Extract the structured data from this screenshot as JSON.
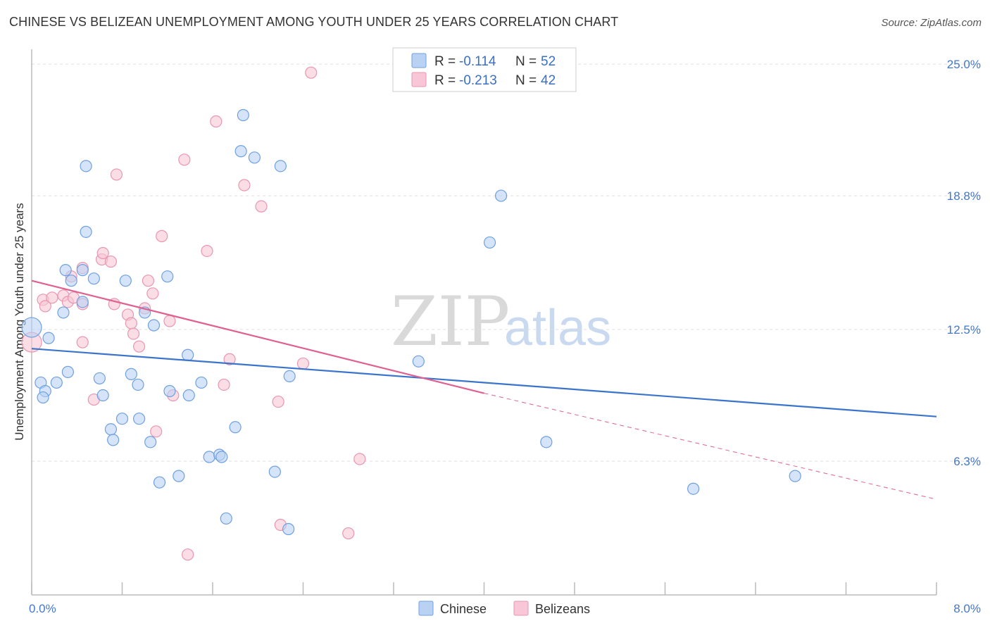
{
  "title": "CHINESE VS BELIZEAN UNEMPLOYMENT AMONG YOUTH UNDER 25 YEARS CORRELATION CHART",
  "source": "Source: ZipAtlas.com",
  "chart_data": {
    "type": "scatter",
    "ylabel": "Unemployment Among Youth under 25 years",
    "x_tick_labels": [
      "0.0%",
      "8.0%"
    ],
    "y_tick_labels": [
      "25.0%",
      "18.8%",
      "12.5%",
      "6.3%"
    ],
    "y_ticks": [
      25.0,
      18.8,
      12.5,
      6.3
    ],
    "xlim": [
      0,
      8
    ],
    "ylim": [
      0,
      25.7
    ],
    "grid": true,
    "watermark": {
      "zip": "ZIP",
      "atlas": "atlas"
    },
    "legend": {
      "rows": [
        {
          "r_label": "R =",
          "r_value": "-0.114",
          "n_label": "N =",
          "n_value": "52"
        },
        {
          "r_label": "R =",
          "r_value": "-0.213",
          "n_label": "N =",
          "n_value": "42"
        }
      ]
    },
    "series": [
      {
        "name": "Chinese",
        "color": "#6fa0e0",
        "fill": "#b9d2f3",
        "trend": {
          "x": [
            0,
            8
          ],
          "y": [
            11.6,
            8.4
          ],
          "color": "#3a74cc"
        },
        "points": [
          [
            0.0,
            12.6
          ],
          [
            0.15,
            12.1
          ],
          [
            0.08,
            10.0
          ],
          [
            0.12,
            9.6
          ],
          [
            0.1,
            9.3
          ],
          [
            0.22,
            10.0
          ],
          [
            0.32,
            10.5
          ],
          [
            0.28,
            13.3
          ],
          [
            0.35,
            14.8
          ],
          [
            0.3,
            15.3
          ],
          [
            0.45,
            15.3
          ],
          [
            0.48,
            17.1
          ],
          [
            0.48,
            20.2
          ],
          [
            0.6,
            10.2
          ],
          [
            0.63,
            9.4
          ],
          [
            0.7,
            7.8
          ],
          [
            0.72,
            7.3
          ],
          [
            0.8,
            8.3
          ],
          [
            0.83,
            14.8
          ],
          [
            0.88,
            10.4
          ],
          [
            0.94,
            9.9
          ],
          [
            0.95,
            8.3
          ],
          [
            1.0,
            13.3
          ],
          [
            1.05,
            7.2
          ],
          [
            1.08,
            12.7
          ],
          [
            1.13,
            5.3
          ],
          [
            1.2,
            15.0
          ],
          [
            1.22,
            9.6
          ],
          [
            1.3,
            5.6
          ],
          [
            1.38,
            11.3
          ],
          [
            1.39,
            9.4
          ],
          [
            1.5,
            10.0
          ],
          [
            1.57,
            6.5
          ],
          [
            1.66,
            6.6
          ],
          [
            1.68,
            6.5
          ],
          [
            1.72,
            3.6
          ],
          [
            1.8,
            7.9
          ],
          [
            1.85,
            20.9
          ],
          [
            1.87,
            22.6
          ],
          [
            1.97,
            20.6
          ],
          [
            2.15,
            5.8
          ],
          [
            2.2,
            20.2
          ],
          [
            2.27,
            3.1
          ],
          [
            2.28,
            10.3
          ],
          [
            3.42,
            11.0
          ],
          [
            4.05,
            16.6
          ],
          [
            4.15,
            18.8
          ],
          [
            4.55,
            7.2
          ],
          [
            5.85,
            5.0
          ],
          [
            6.75,
            5.6
          ],
          [
            0.55,
            14.9
          ],
          [
            0.45,
            13.8
          ]
        ]
      },
      {
        "name": "Belizeans",
        "color": "#e896b2",
        "fill": "#f8c6d6",
        "trend": {
          "x": [
            0,
            4.0
          ],
          "y": [
            14.8,
            9.5
          ],
          "color": "#e06090",
          "dash_x": [
            4.0,
            8.0
          ],
          "dash_y": [
            9.5,
            4.5
          ]
        },
        "points": [
          [
            0.0,
            11.9
          ],
          [
            0.1,
            13.9
          ],
          [
            0.12,
            13.6
          ],
          [
            0.18,
            14.0
          ],
          [
            0.28,
            14.1
          ],
          [
            0.32,
            13.8
          ],
          [
            0.37,
            14.0
          ],
          [
            0.35,
            15.0
          ],
          [
            0.45,
            13.7
          ],
          [
            0.45,
            15.4
          ],
          [
            0.45,
            11.9
          ],
          [
            0.55,
            9.2
          ],
          [
            0.62,
            15.8
          ],
          [
            0.63,
            16.1
          ],
          [
            0.7,
            15.7
          ],
          [
            0.73,
            13.7
          ],
          [
            0.85,
            13.2
          ],
          [
            0.88,
            12.8
          ],
          [
            0.9,
            12.3
          ],
          [
            0.95,
            11.7
          ],
          [
            1.03,
            14.8
          ],
          [
            1.07,
            14.2
          ],
          [
            1.1,
            7.7
          ],
          [
            1.15,
            16.9
          ],
          [
            1.22,
            12.9
          ],
          [
            1.25,
            9.4
          ],
          [
            1.35,
            20.5
          ],
          [
            1.38,
            1.9
          ],
          [
            1.55,
            16.2
          ],
          [
            1.63,
            22.3
          ],
          [
            1.7,
            9.9
          ],
          [
            1.75,
            11.1
          ],
          [
            1.88,
            19.3
          ],
          [
            2.03,
            18.3
          ],
          [
            2.2,
            3.3
          ],
          [
            2.18,
            9.1
          ],
          [
            2.4,
            10.9
          ],
          [
            2.47,
            24.6
          ],
          [
            2.8,
            2.9
          ],
          [
            2.9,
            6.4
          ],
          [
            0.75,
            19.8
          ],
          [
            1.0,
            13.5
          ]
        ]
      }
    ]
  },
  "bottom_legend": {
    "series1": "Chinese",
    "series2": "Belizeans"
  }
}
